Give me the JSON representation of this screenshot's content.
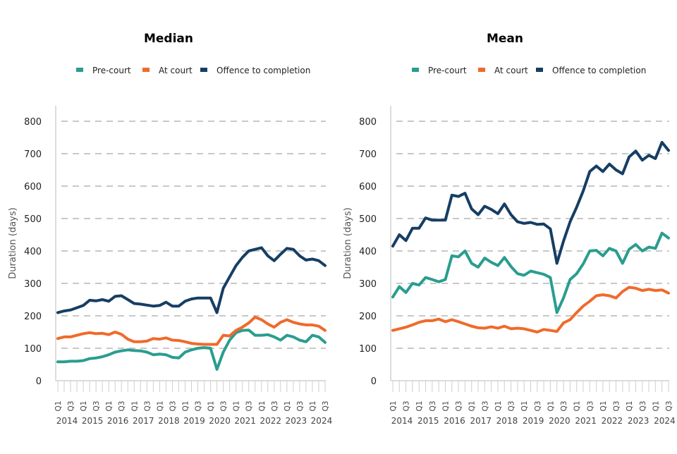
{
  "colors": {
    "precourt": "#2a9d8f",
    "atcourt": "#f06a2a",
    "offence": "#163e64"
  },
  "chart_data": [
    {
      "type": "line",
      "title": "Median",
      "ylabel": "Duration (days)",
      "ylim": [
        0,
        850
      ],
      "yticks": [
        0,
        100,
        200,
        300,
        400,
        500,
        600,
        700,
        800
      ],
      "grid": true,
      "legend_position": "top",
      "x_start": "Q1 2014",
      "x_end": "Q3 2024",
      "quarter_labels": [
        "Q1",
        "Q3"
      ],
      "years": [
        "2014",
        "2015",
        "2016",
        "2017",
        "2018",
        "2019",
        "2020",
        "2021",
        "2022",
        "2023",
        "2024"
      ],
      "series": [
        {
          "name": "Pre-court",
          "color_key": "precourt",
          "values": [
            58,
            58,
            60,
            60,
            62,
            68,
            70,
            74,
            80,
            88,
            92,
            95,
            93,
            92,
            88,
            80,
            82,
            80,
            72,
            70,
            88,
            95,
            100,
            102,
            100,
            35,
            88,
            125,
            148,
            155,
            156,
            140,
            140,
            142,
            135,
            125,
            140,
            135,
            125,
            120,
            140,
            135,
            118
          ]
        },
        {
          "name": "At court",
          "color_key": "atcourt",
          "values": [
            130,
            135,
            135,
            140,
            145,
            148,
            145,
            146,
            142,
            150,
            143,
            128,
            120,
            120,
            122,
            130,
            128,
            132,
            125,
            124,
            120,
            115,
            113,
            112,
            112,
            112,
            140,
            138,
            155,
            165,
            178,
            196,
            188,
            175,
            165,
            180,
            188,
            180,
            175,
            172,
            172,
            168,
            155
          ]
        },
        {
          "name": "Offence to completion",
          "color_key": "offence",
          "values": [
            210,
            215,
            218,
            225,
            232,
            248,
            246,
            250,
            245,
            260,
            262,
            250,
            238,
            236,
            233,
            230,
            232,
            242,
            230,
            230,
            245,
            252,
            255,
            255,
            255,
            210,
            285,
            320,
            355,
            380,
            400,
            405,
            410,
            385,
            370,
            390,
            408,
            405,
            385,
            372,
            375,
            370,
            355
          ]
        }
      ]
    },
    {
      "type": "line",
      "title": "Mean",
      "ylabel": "Duration (days)",
      "ylim": [
        0,
        850
      ],
      "yticks": [
        0,
        100,
        200,
        300,
        400,
        500,
        600,
        700,
        800
      ],
      "grid": true,
      "legend_position": "top",
      "x_start": "Q1 2014",
      "x_end": "Q3 2024",
      "quarter_labels": [
        "Q1",
        "Q3"
      ],
      "years": [
        "2014",
        "2015",
        "2016",
        "2017",
        "2018",
        "2019",
        "2020",
        "2021",
        "2022",
        "2023",
        "2024"
      ],
      "series": [
        {
          "name": "Pre-court",
          "color_key": "precourt",
          "values": [
            258,
            290,
            272,
            300,
            295,
            318,
            312,
            305,
            312,
            385,
            382,
            400,
            362,
            350,
            378,
            365,
            355,
            380,
            352,
            330,
            325,
            338,
            333,
            328,
            318,
            210,
            255,
            312,
            330,
            360,
            400,
            402,
            385,
            408,
            400,
            362,
            405,
            420,
            400,
            412,
            408,
            455,
            440
          ]
        },
        {
          "name": "At court",
          "color_key": "atcourt",
          "values": [
            155,
            160,
            165,
            172,
            180,
            185,
            185,
            190,
            182,
            188,
            182,
            175,
            168,
            163,
            162,
            166,
            162,
            168,
            160,
            162,
            160,
            155,
            150,
            158,
            155,
            152,
            178,
            188,
            210,
            230,
            245,
            262,
            265,
            262,
            255,
            275,
            288,
            285,
            278,
            282,
            278,
            280,
            270
          ]
        },
        {
          "name": "Offence to completion",
          "color_key": "offence",
          "values": [
            415,
            450,
            432,
            470,
            470,
            502,
            495,
            495,
            495,
            572,
            568,
            578,
            530,
            512,
            538,
            528,
            515,
            545,
            512,
            490,
            485,
            488,
            482,
            483,
            468,
            362,
            430,
            490,
            535,
            585,
            645,
            662,
            645,
            668,
            650,
            638,
            690,
            708,
            680,
            695,
            685,
            735,
            710
          ]
        }
      ]
    }
  ]
}
